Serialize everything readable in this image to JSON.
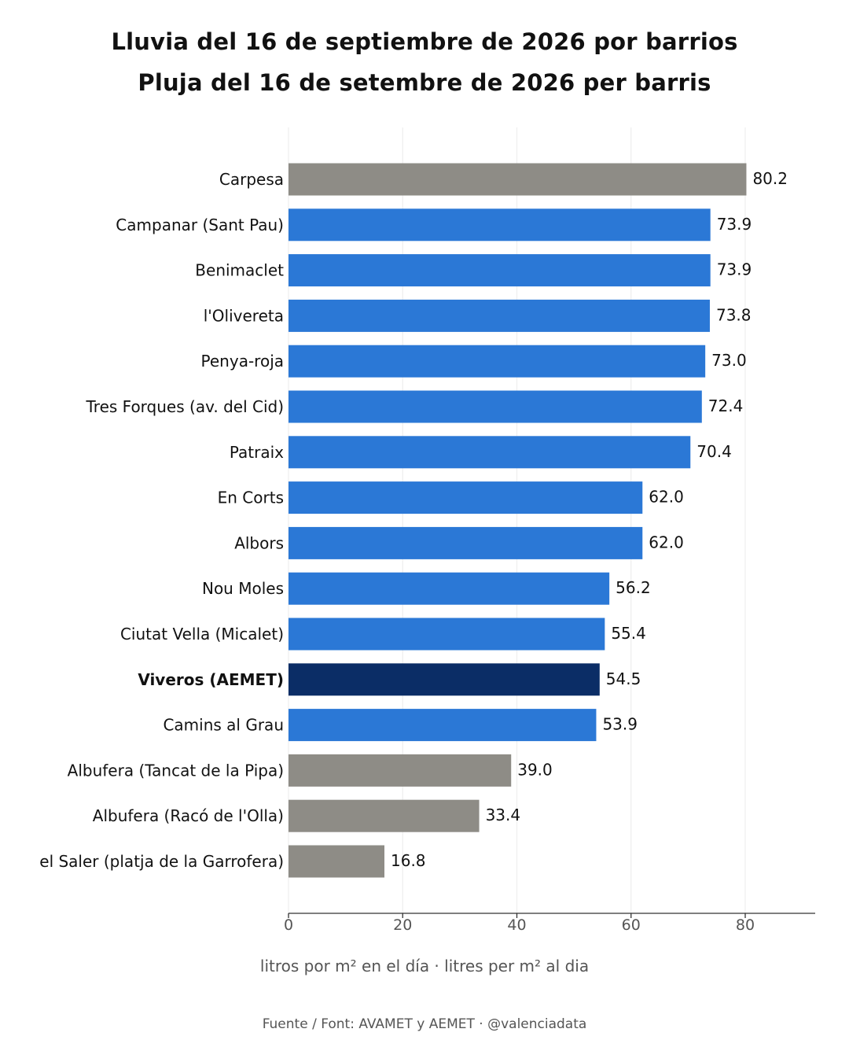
{
  "title": {
    "line1": "Lluvia del 16 de septiembre de 2026 por barrios",
    "line2": "Pluja del 16 de setembre de 2026 per barris"
  },
  "source": "Fuente / Font: AVAMET y AEMET · @valenciadata",
  "colors": {
    "blue": "#2B78D6",
    "gray": "#8E8C86",
    "navy": "#0B2D66",
    "grid": "#EEEEEE",
    "axis": "#333333",
    "text": "#111111",
    "tick_text": "#555555"
  },
  "chart_data": {
    "type": "bar",
    "orientation": "horizontal",
    "xlabel": "litros por m² en el día · litres per m² al dia",
    "ylabel": "",
    "xlim": [
      0,
      92
    ],
    "xticks": [
      0,
      20,
      40,
      60,
      80
    ],
    "grid": "vertical",
    "categories": [
      "Carpesa",
      "Campanar (Sant Pau)",
      "Benimaclet",
      "l'Olivereta",
      "Penya-roja",
      "Tres Forques (av. del Cid)",
      "Patraix",
      "En Corts",
      "Albors",
      "Nou Moles",
      "Ciutat Vella (Micalet)",
      "Viveros (AEMET)",
      "Camins al Grau",
      "Albufera (Tancat de la Pipa)",
      "Albufera (Racó de l'Olla)",
      "el Saler (platja de la Garrofera)"
    ],
    "values": [
      80.2,
      73.9,
      73.9,
      73.8,
      73.0,
      72.4,
      70.4,
      62.0,
      62.0,
      56.2,
      55.4,
      54.5,
      53.9,
      39.0,
      33.4,
      16.8
    ],
    "value_labels": [
      "80.2",
      "73.9",
      "73.9",
      "73.8",
      "73.0",
      "72.4",
      "70.4",
      "62.0",
      "62.0",
      "56.2",
      "55.4",
      "54.5",
      "53.9",
      "39.0",
      "33.4",
      "16.8"
    ],
    "bar_colors": [
      "gray",
      "blue",
      "blue",
      "blue",
      "blue",
      "blue",
      "blue",
      "blue",
      "blue",
      "blue",
      "blue",
      "navy",
      "blue",
      "gray",
      "gray",
      "gray"
    ],
    "bold_categories": [
      "Viveros (AEMET)"
    ]
  }
}
